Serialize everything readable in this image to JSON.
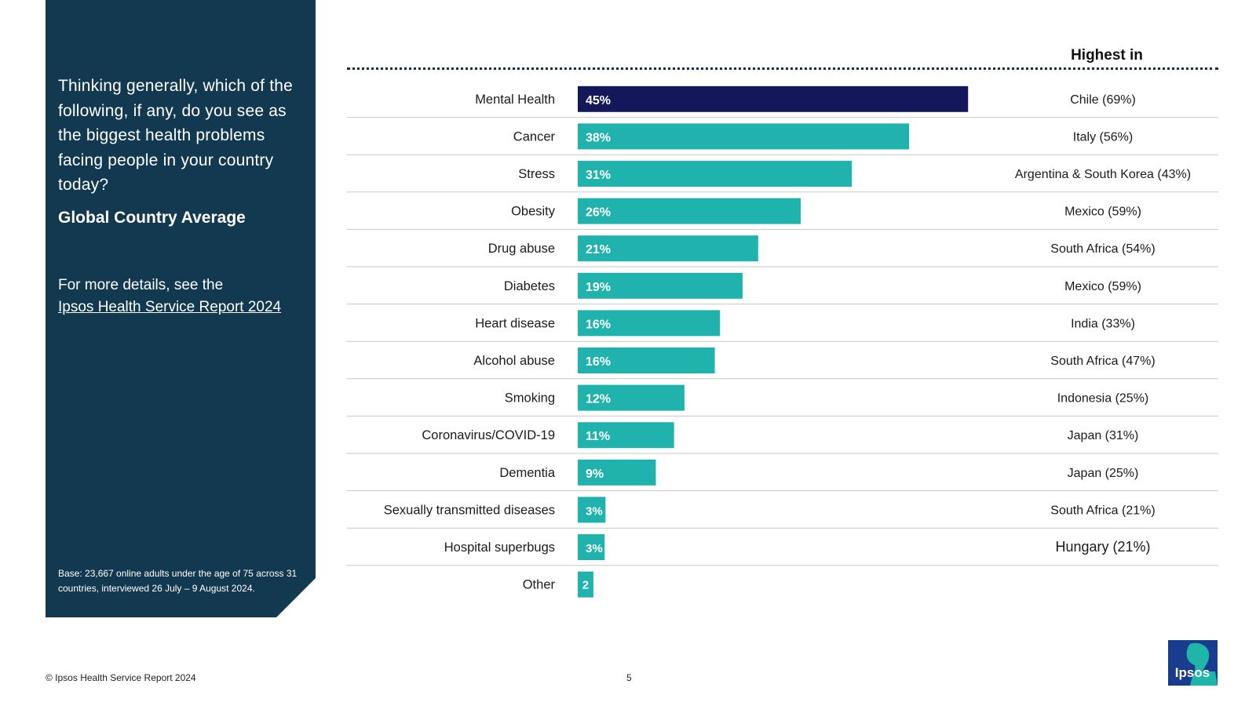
{
  "panel": {
    "question": "Thinking generally, which of the following, if any, do you see as the biggest health problems facing people in your country today?",
    "subtitle": "Global Country Average",
    "more_details": "For more details, see the",
    "report_link": "Ipsos Health Service Report 2024",
    "base_note": "Base: 23,667 online adults under the age of 75 across 31 countries, interviewed 26 July – 9 August 2024."
  },
  "footer": {
    "copyright": "© Ipsos Health Service Report 2024",
    "page_number": "5",
    "logo_text": "Ipsos"
  },
  "colors": {
    "panel_bg": "#12394f",
    "highlight_bar": "#14185a",
    "bar": "#20b2ac",
    "logo_bg": "#1a3c8f",
    "logo_accent": "#1fb5a8"
  },
  "chart_data": {
    "type": "bar",
    "orientation": "horizontal",
    "title": "Global Country Average",
    "value_suffix": "%",
    "highest_header": "Highest in",
    "categories": [
      "Mental Health",
      "Cancer",
      "Stress",
      "Obesity",
      "Drug abuse",
      "Diabetes",
      "Heart disease",
      "Alcohol abuse",
      "Smoking",
      "Coronavirus/COVID-19",
      "Dementia",
      "Sexually transmitted diseases",
      "Hospital superbugs",
      "Other"
    ],
    "values": [
      45,
      38,
      31,
      26,
      21,
      19,
      16,
      16,
      12,
      11,
      9,
      3,
      3,
      2
    ],
    "value_labels": [
      "45%",
      "38%",
      "31%",
      "26%",
      "21%",
      "19%",
      "16%",
      "16%",
      "12%",
      "11%",
      "9%",
      "3%",
      "3%",
      "2"
    ],
    "bar_widths": [
      45,
      38.2,
      31.6,
      25.7,
      20.8,
      19.0,
      16.4,
      15.8,
      12.3,
      11.1,
      9.0,
      3.2,
      3.1,
      1.8
    ],
    "highlight_index": 0,
    "highest_in": [
      "Chile (69%)",
      "Italy (56%)",
      "Argentina & South Korea (43%)",
      "Mexico (59%)",
      "South Africa (54%)",
      "Mexico (59%)",
      "India (33%)",
      "South Africa (47%)",
      "Indonesia (25%)",
      "Japan (31%)",
      "Japan (25%)",
      "South Africa (21%)",
      "Hungary (21%)",
      ""
    ],
    "xlim": [
      0,
      45
    ]
  }
}
